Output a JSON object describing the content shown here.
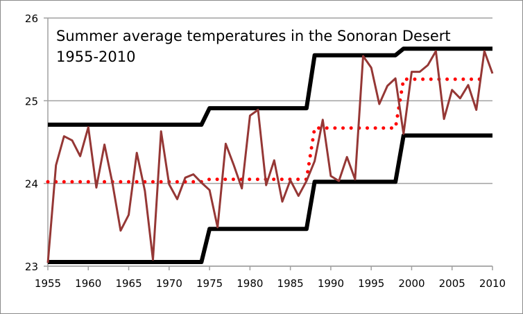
{
  "chart_data": {
    "type": "line",
    "title": [
      "Summer average temperatures in the Sonoran Desert",
      "1955-2010"
    ],
    "xlabel": "",
    "ylabel": "",
    "xlim": [
      1955,
      2010
    ],
    "ylim": [
      23,
      26
    ],
    "x_ticks": [
      "1955",
      "1960",
      "1965",
      "1970",
      "1975",
      "1980",
      "1985",
      "1990",
      "1995",
      "2000",
      "2005",
      "2010"
    ],
    "y_ticks": [
      "23",
      "24",
      "25",
      "26"
    ],
    "grid": "horizontal",
    "colors": {
      "temperature": "#953735",
      "mean": "#ff0000",
      "bands": "#000000",
      "grid": "#a0a0a0"
    },
    "series": [
      {
        "style": "solid",
        "x": [
          1955,
          1956,
          1957,
          1958,
          1959,
          1960,
          1961,
          1962,
          1963,
          1964,
          1965,
          1966,
          1967,
          1968,
          1969,
          1970,
          1971,
          1972,
          1973,
          1974,
          1975,
          1976,
          1977,
          1978,
          1979,
          1980,
          1981,
          1982,
          1983,
          1984,
          1985,
          1986,
          1987,
          1988,
          1989,
          1990,
          1991,
          1992,
          1993,
          1994,
          1995,
          1996,
          1997,
          1998,
          1999,
          2000,
          2001,
          2002,
          2003,
          2004,
          2005,
          2006,
          2007,
          2008,
          2009,
          2010
        ],
        "y": [
          23.04,
          24.22,
          24.57,
          24.52,
          24.33,
          24.68,
          23.95,
          24.47,
          24.0,
          23.43,
          23.62,
          24.37,
          23.91,
          23.08,
          24.63,
          23.99,
          23.81,
          24.07,
          24.11,
          24.01,
          23.92,
          23.47,
          24.48,
          24.22,
          23.94,
          24.82,
          24.89,
          23.98,
          24.28,
          23.78,
          24.04,
          23.85,
          24.03,
          24.27,
          24.77,
          24.09,
          24.03,
          24.32,
          24.05,
          25.54,
          25.4,
          24.96,
          25.18,
          25.27,
          24.6,
          25.35,
          25.35,
          25.43,
          25.6,
          24.78,
          25.13,
          25.03,
          25.19,
          24.89,
          25.6,
          25.33
        ]
      },
      {
        "style": "dotted",
        "x": [
          1955,
          1974,
          1975,
          1987,
          1988,
          1998,
          1999,
          2009
        ],
        "y": [
          24.02,
          24.02,
          24.05,
          24.05,
          24.67,
          24.67,
          25.26,
          25.26
        ]
      },
      {
        "style": "thick",
        "x": [
          1955,
          1974,
          1975,
          1987,
          1988,
          1998,
          1999,
          2010
        ],
        "y": [
          24.71,
          24.71,
          24.91,
          24.91,
          25.55,
          25.55,
          25.63,
          25.63
        ]
      },
      {
        "style": "thick",
        "x": [
          1955,
          1974,
          1975,
          1987,
          1988,
          1998,
          1999,
          2010
        ],
        "y": [
          23.05,
          23.05,
          23.45,
          23.45,
          24.02,
          24.02,
          24.58,
          24.58
        ]
      }
    ]
  }
}
